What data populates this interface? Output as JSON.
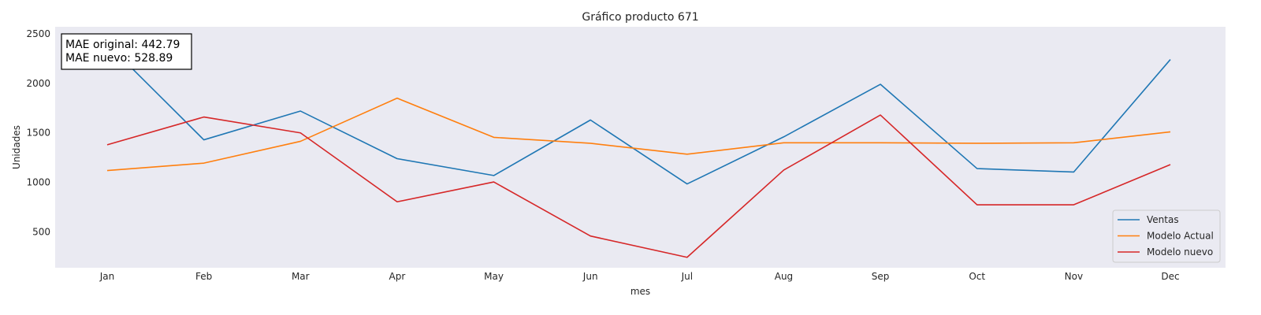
{
  "chart_data": {
    "type": "line",
    "title": "Gráfico producto 671",
    "xlabel": "mes",
    "ylabel": "Unidades",
    "categories": [
      "Jan",
      "Feb",
      "Mar",
      "Apr",
      "May",
      "Jun",
      "Jul",
      "Aug",
      "Sep",
      "Oct",
      "Nov",
      "Dec"
    ],
    "yticks": [
      500,
      1000,
      1500,
      2000,
      2500
    ],
    "ylim": [
      140,
      2570
    ],
    "grid": false,
    "background_color": "#eaeaf2",
    "series": [
      {
        "name": "Ventas",
        "color": "#1f77b4",
        "values": [
          2400,
          1430,
          1720,
          1240,
          1070,
          1630,
          985,
          1460,
          1990,
          1140,
          1105,
          2240
        ]
      },
      {
        "name": "Modelo Actual",
        "color": "#ff7f0e",
        "values": [
          1120,
          1195,
          1415,
          1850,
          1455,
          1395,
          1285,
          1400,
          1400,
          1395,
          1400,
          1510
        ]
      },
      {
        "name": "Modelo nuevo",
        "color": "#d62728",
        "values": [
          1380,
          1660,
          1500,
          805,
          1005,
          460,
          245,
          1125,
          1680,
          775,
          775,
          1180
        ]
      }
    ],
    "legend_position": "lower-right",
    "annotation": {
      "lines": [
        "MAE original: 442.79",
        "MAE nuevo: 528.89"
      ],
      "position": "top-left"
    }
  }
}
